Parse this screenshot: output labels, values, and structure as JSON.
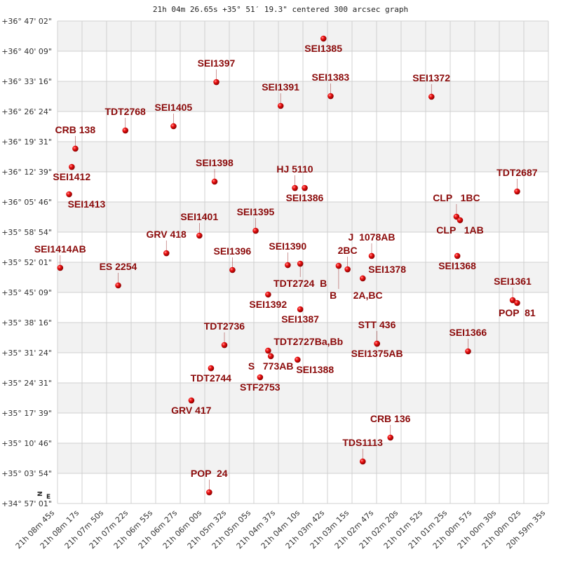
{
  "chart_data": {
    "type": "scatter",
    "title": "21h 04m 26.65s +35° 51′ 19.3\" centered 300 arcsec graph",
    "xlabel": "",
    "ylabel": "",
    "xlim": [
      "21 08 45",
      "20 59 35"
    ],
    "ylim": [
      "+34 57 01",
      "+36 47 02"
    ],
    "grid": true,
    "band_colors": [
      "#f2f2f2",
      "#ffffff"
    ],
    "grid_color": "#d0d0d0",
    "marker_color": "#e00000",
    "label_color": "#8b0a0a",
    "x_tick_labels": [
      "21h 08m 45s",
      "21h 08m 17s",
      "21h 07m 50s",
      "21h 07m 22s",
      "21h 06m 55s",
      "21h 06m 27s",
      "21h 06m 00s",
      "21h 05m 32s",
      "21h 05m 05s",
      "21h 04m 37s",
      "21h 04m 10s",
      "21h 03m 42s",
      "21h 03m 15s",
      "21h 02m 47s",
      "21h 02m 20s",
      "21h 01m 52s",
      "21h 01m 25s",
      "21h 00m 57s",
      "21h 00m 30s",
      "21h 00m 02s",
      "20h 59m 35s"
    ],
    "y_tick_labels": [
      "+36° 47' 02\"",
      "+36° 40' 09\"",
      "+36° 33' 16\"",
      "+36° 26' 24\"",
      "+36° 19' 31\"",
      "+36° 12' 39\"",
      "+36° 05' 46\"",
      "+35° 58' 54\"",
      "+35° 52' 01\"",
      "+35° 45' 09\"",
      "+35° 38' 16\"",
      "+35° 31' 24\"",
      "+35° 24' 31\"",
      "+35° 17' 39\"",
      "+35° 10' 46\"",
      "+35° 03' 54\"",
      "+34° 57' 01\""
    ],
    "compass": {
      "north": "N",
      "east": "E"
    },
    "stars": [
      {
        "name": "SEI1385",
        "ra": "21 03 47",
        "dec": "+36 43 02"
      },
      {
        "name": "SEI1397",
        "ra": "21 05 47",
        "dec": "+36 33 07"
      },
      {
        "name": "SEI1383",
        "ra": "21 03 39",
        "dec": "+36 29 55"
      },
      {
        "name": "SEI1372",
        "ra": "21 01 46",
        "dec": "+36 29 46"
      },
      {
        "name": "SEI1391",
        "ra": "21 04 35",
        "dec": "+36 27 41"
      },
      {
        "name": "SEI1405",
        "ra": "21 06 35",
        "dec": "+36 23 03"
      },
      {
        "name": "TDT2768",
        "ra": "21 07 29",
        "dec": "+36 22 05"
      },
      {
        "name": "CRB 138",
        "ra": "21 08 25",
        "dec": "+36 17 56"
      },
      {
        "name": "SEI1412",
        "ra": "21 08 29",
        "dec": "+36 13 46"
      },
      {
        "name": "SEI1398",
        "ra": "21 05 49",
        "dec": "+36 10 25"
      },
      {
        "name": "TDT2687",
        "ra": "21 00 10",
        "dec": "+36 08 10"
      },
      {
        "name": "SEI1413",
        "ra": "21 08 32",
        "dec": "+36 07 32"
      },
      {
        "name": "HJ 5110",
        "ra": "21 04 19",
        "dec": "+36 08 58"
      },
      {
        "name": "SEI1386",
        "ra": "21 04 08",
        "dec": "+36 08 58"
      },
      {
        "name": "CLP   1BC",
        "ra": "21 01 18",
        "dec": "+36 02 25"
      },
      {
        "name": "CLP   1AB",
        "ra": "21 01 14",
        "dec": "+36 01 37"
      },
      {
        "name": "SEI1395",
        "ra": "21 05 03",
        "dec": "+35 59 13"
      },
      {
        "name": "SEI1401",
        "ra": "21 06 06",
        "dec": "+35 58 06"
      },
      {
        "name": "GRV 418",
        "ra": "21 06 43",
        "dec": "+35 54 06"
      },
      {
        "name": "SEI1368",
        "ra": "21 01 17",
        "dec": "+35 53 28"
      },
      {
        "name": "J  1078AB",
        "ra": "21 02 53",
        "dec": "+35 53 28"
      },
      {
        "name": "SEI1390",
        "ra": "21 04 27",
        "dec": "+35 51 23"
      },
      {
        "name": "TDT2724  B",
        "ra": "21 04 13",
        "dec": "+35 51 42"
      },
      {
        "name": "B      2A,BC",
        "ra": "21 03 30",
        "dec": "+35 51 13"
      },
      {
        "name": "2BC",
        "ra": "21 03 20",
        "dec": "+35 50 25"
      },
      {
        "name": "SEI1378",
        "ra": "21 03 03",
        "dec": "+35 48 21"
      },
      {
        "name": "SEI1414AB",
        "ra": "21 08 42",
        "dec": "+35 50 45"
      },
      {
        "name": "ES 2254",
        "ra": "21 07 37",
        "dec": "+35 46 45"
      },
      {
        "name": "SEI1396",
        "ra": "21 05 29",
        "dec": "+35 50 16"
      },
      {
        "name": "SEI1392",
        "ra": "21 04 49",
        "dec": "+35 44 40"
      },
      {
        "name": "SEI1387",
        "ra": "21 04 13",
        "dec": "+35 41 18"
      },
      {
        "name": "SEI1361",
        "ra": "21 00 15",
        "dec": "+35 43 23"
      },
      {
        "name": "POP  81",
        "ra": "21 00 10",
        "dec": "+35 42 45"
      },
      {
        "name": "TDT2736",
        "ra": "21 05 38",
        "dec": "+35 33 09"
      },
      {
        "name": "TDT2727Ba,Bb",
        "ra": "21 04 49",
        "dec": "+35 31 52"
      },
      {
        "name": "S   773AB",
        "ra": "21 04 46",
        "dec": "+35 30 36"
      },
      {
        "name": "SEI1388",
        "ra": "21 04 16",
        "dec": "+35 29 48"
      },
      {
        "name": "STT 436",
        "ra": "21 02 47",
        "dec": "+35 33 28"
      },
      {
        "name": "SEI1375AB",
        "ra": "21 02 47",
        "dec": "+35 33 28"
      },
      {
        "name": "SEI1366",
        "ra": "21 01 05",
        "dec": "+35 31 43"
      },
      {
        "name": "TDT2744",
        "ra": "21 05 53",
        "dec": "+35 27 52"
      },
      {
        "name": "STF2753",
        "ra": "21 04 58",
        "dec": "+35 25 48"
      },
      {
        "name": "GRV 417",
        "ra": "21 06 15",
        "dec": "+35 20 31"
      },
      {
        "name": "CRB 136",
        "ra": "21 02 32",
        "dec": "+35 12 03"
      },
      {
        "name": "TDS1113",
        "ra": "21 03 03",
        "dec": "+35 06 36"
      },
      {
        "name": "POP  24",
        "ra": "21 05 55",
        "dec": "+34 59 34"
      }
    ]
  }
}
